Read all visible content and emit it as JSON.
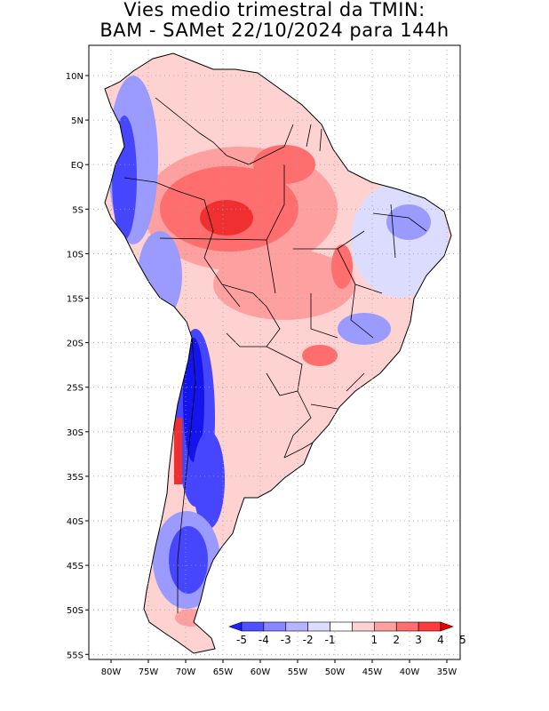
{
  "title": {
    "line1": "Vies medio trimestral da TMIN:",
    "line2": "BAM - SAMet 22/10/2024  para 144h"
  },
  "axes": {
    "lat_labels": [
      "10N",
      "5N",
      "EQ",
      "5S",
      "10S",
      "15S",
      "20S",
      "25S",
      "30S",
      "35S",
      "40S",
      "45S",
      "50S",
      "55S"
    ],
    "lon_labels": [
      "80W",
      "75W",
      "70W",
      "65W",
      "60W",
      "55W",
      "50W",
      "45W",
      "40W",
      "35W"
    ]
  },
  "colorbar": {
    "labels": [
      "-5",
      "-4",
      "-3",
      "-2",
      "-1",
      "1",
      "2",
      "3",
      "4",
      "5"
    ],
    "colors": [
      "#1e1eff",
      "#5050ff",
      "#8787ff",
      "#b4b4ff",
      "#dcdcff",
      "#ffffff",
      "#ffd2d2",
      "#ffa0a0",
      "#ff6e6e",
      "#ff3c3c",
      "#f00000"
    ]
  },
  "colors": {
    "neutral": "#ffffff",
    "warm_light": "#ffd2d2",
    "warm_mid": "#ffa0a0",
    "warm_strong": "#ff6e6e",
    "warm_max": "#f03030",
    "cool_light": "#dcdcff",
    "cool_mid": "#9a9aff",
    "cool_strong": "#4646ff",
    "cool_max": "#1414ee",
    "coast": "#000000",
    "grid": "#a0a0a0"
  }
}
